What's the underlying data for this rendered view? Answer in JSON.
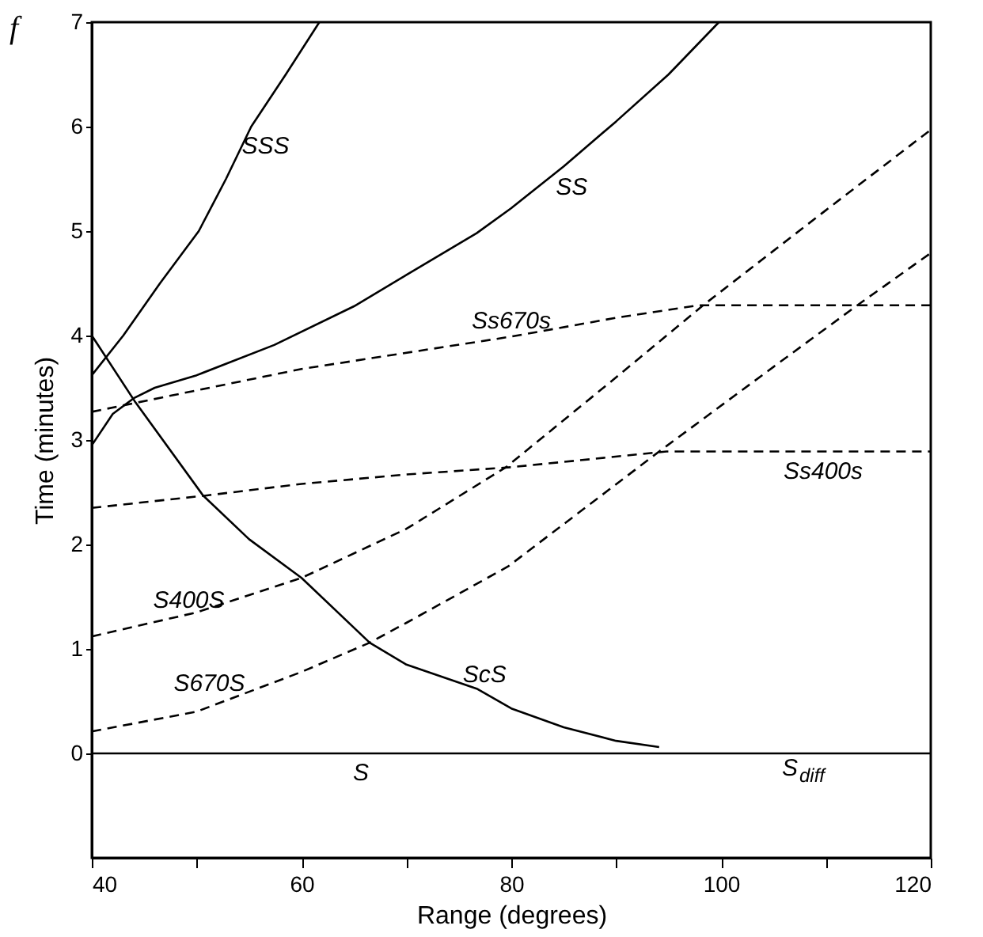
{
  "chart_data": {
    "type": "line",
    "xlabel": "Range (degrees)",
    "ylabel": "Time (minutes)",
    "xlim": [
      40,
      120
    ],
    "ylim": [
      -1,
      7
    ],
    "xticks": [
      40,
      {
        "value": 50,
        "label": null
      },
      60,
      {
        "value": 70,
        "label": null
      },
      80,
      {
        "value": 90,
        "label": null
      },
      100,
      {
        "value": 110,
        "label": null
      },
      120
    ],
    "yticks": [
      0,
      1,
      2,
      3,
      4,
      5,
      6,
      7
    ],
    "grid": false,
    "legend": false,
    "marker": "none",
    "series": [
      {
        "name": "SSS",
        "color": "#000000",
        "line_style": "solid",
        "x": [
          40,
          43,
          46.5,
          50.2,
          52.8,
          55.2,
          58.5,
          61.7
        ],
        "values": [
          3.62,
          4,
          4.5,
          5,
          5.5,
          6,
          6.5,
          7
        ]
      },
      {
        "name": "SS",
        "color": "#000000",
        "line_style": "solid",
        "x": [
          40,
          42,
          44,
          46,
          50,
          57.4,
          65,
          70,
          76.7,
          80,
          85,
          90,
          95,
          99.8
        ],
        "values": [
          2.95,
          3.25,
          3.4,
          3.5,
          3.62,
          3.91,
          4.28,
          4.58,
          4.98,
          5.22,
          5.62,
          6.05,
          6.5,
          7
        ]
      },
      {
        "name": "Ss670s",
        "color": "#000000",
        "line_style": "dashed",
        "x": [
          40,
          60,
          80,
          90,
          97.9,
          120
        ],
        "values": [
          3.27,
          3.68,
          3.99,
          4.17,
          4.29,
          4.29
        ]
      },
      {
        "name": "Ss400s",
        "color": "#000000",
        "line_style": "dashed",
        "x": [
          40,
          51,
          60,
          70,
          80,
          94.8,
          120
        ],
        "values": [
          2.35,
          2.47,
          2.58,
          2.67,
          2.74,
          2.89,
          2.89
        ]
      },
      {
        "name": "S400S",
        "color": "#000000",
        "line_style": "dashed",
        "x": [
          40,
          50,
          60,
          70,
          79.5,
          90,
          98.3,
          110,
          120
        ],
        "values": [
          1.12,
          1.35,
          1.68,
          2.15,
          2.74,
          3.6,
          4.29,
          5.2,
          5.97
        ]
      },
      {
        "name": "S670S",
        "color": "#000000",
        "line_style": "dashed",
        "x": [
          40,
          50,
          60,
          66.5,
          70,
          79.7,
          94.1,
          105,
          113,
          120
        ],
        "values": [
          0.21,
          0.4,
          0.78,
          1.06,
          1.25,
          1.79,
          2.89,
          3.7,
          4.29,
          4.79
        ]
      },
      {
        "name": "ScS",
        "color": "#000000",
        "line_style": "solid",
        "x": [
          40,
          44.1,
          50.6,
          55,
          60,
          66.5,
          70,
          76.7,
          80,
          85,
          90,
          94.1
        ],
        "values": [
          4,
          3.37,
          2.47,
          2.05,
          1.68,
          1.06,
          0.85,
          0.62,
          0.43,
          0.25,
          0.12,
          0.06
        ]
      },
      {
        "name": "S",
        "color": "#000000",
        "line_style": "solid",
        "x": [
          40,
          120
        ],
        "values": [
          0,
          0
        ]
      }
    ],
    "annotations": [
      "f",
      "S$_{diff}$"
    ]
  }
}
